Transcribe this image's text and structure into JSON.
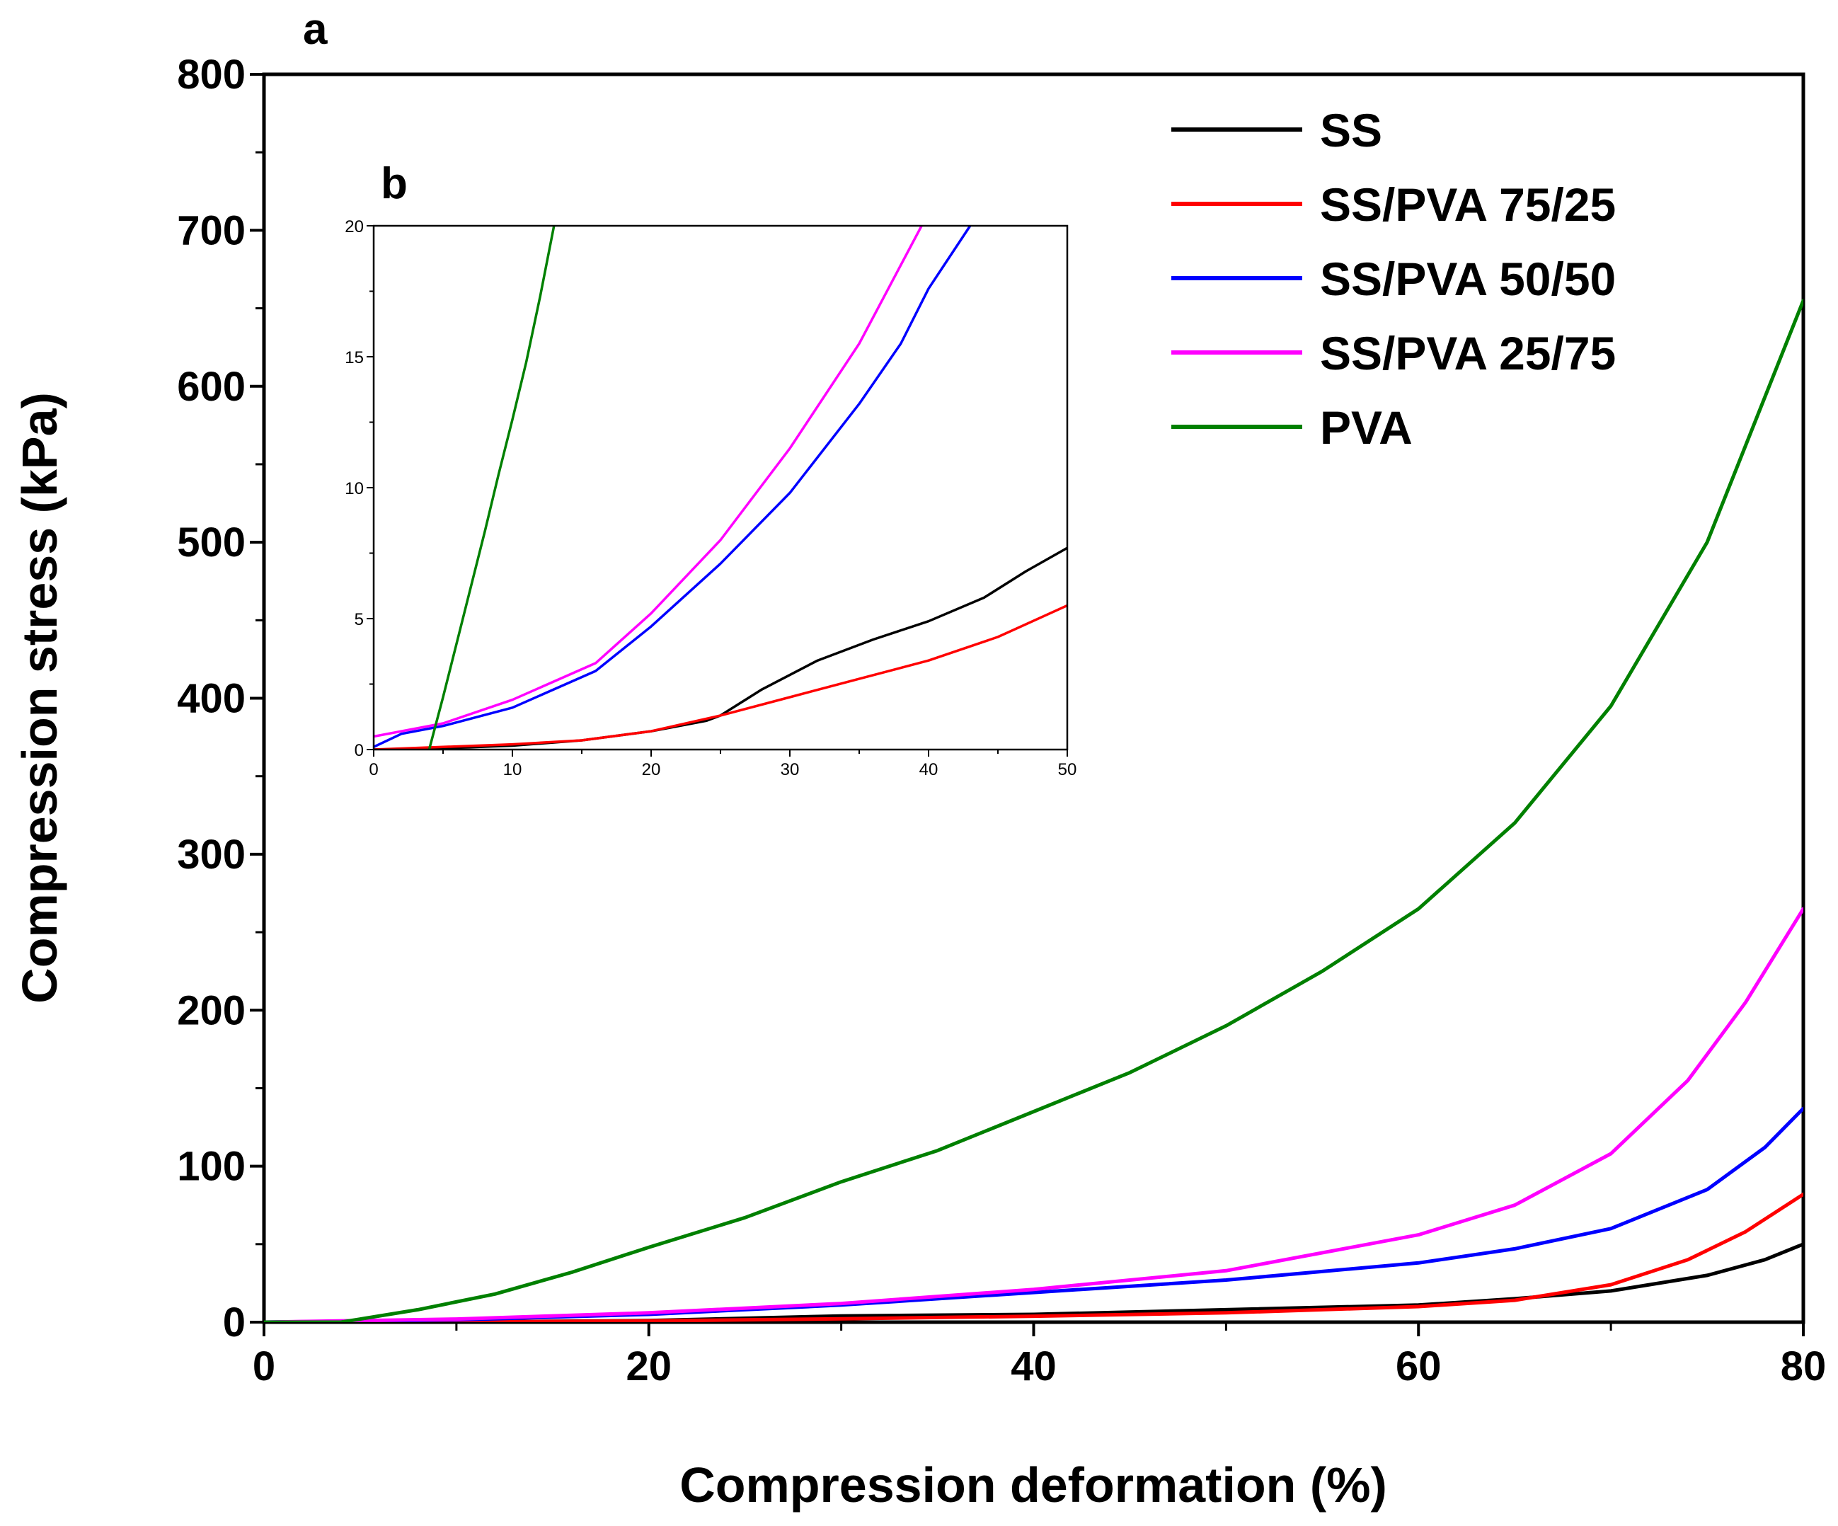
{
  "chart_data": [
    {
      "panel": "a",
      "type": "line",
      "title": "",
      "xlabel": "Compression deformation (%)",
      "ylabel": "Compression stress (kPa)",
      "xlim": [
        0,
        80
      ],
      "ylim": [
        0,
        800
      ],
      "xticks": [
        "0",
        "20",
        "40",
        "60",
        "80"
      ],
      "yticks": [
        "0",
        "100",
        "200",
        "300",
        "400",
        "500",
        "600",
        "700",
        "800"
      ],
      "grid": false,
      "legend_position": "top-right",
      "series": [
        {
          "name": "SS",
          "color": "#000000",
          "x": [
            0,
            10,
            20,
            30,
            40,
            50,
            60,
            65,
            70,
            75,
            78,
            80
          ],
          "y": [
            0,
            0.2,
            1,
            4,
            5,
            8,
            11,
            15,
            20,
            30,
            40,
            50
          ]
        },
        {
          "name": "SS/PVA 75/25",
          "color": "#ff0000",
          "x": [
            0,
            10,
            20,
            30,
            40,
            50,
            60,
            65,
            70,
            74,
            77,
            80
          ],
          "y": [
            0,
            0.2,
            0.8,
            2.2,
            3.8,
            6,
            10,
            14,
            24,
            40,
            58,
            82
          ]
        },
        {
          "name": "SS/PVA 50/50",
          "color": "#0000ff",
          "x": [
            0,
            10,
            20,
            30,
            40,
            50,
            60,
            65,
            70,
            75,
            78,
            80
          ],
          "y": [
            0,
            1.5,
            5,
            11,
            19,
            27,
            38,
            47,
            60,
            85,
            112,
            137
          ]
        },
        {
          "name": "SS/PVA 25/75",
          "color": "#ff00ff",
          "x": [
            0,
            10,
            20,
            30,
            40,
            50,
            60,
            65,
            70,
            74,
            77,
            80
          ],
          "y": [
            0,
            2,
            6,
            12,
            21,
            33,
            56,
            75,
            108,
            155,
            205,
            265
          ]
        },
        {
          "name": "PVA",
          "color": "#008000",
          "x": [
            0,
            4,
            8,
            12,
            16,
            20,
            25,
            30,
            35,
            40,
            45,
            50,
            55,
            60,
            65,
            70,
            75,
            80
          ],
          "y": [
            0,
            0,
            8,
            18,
            32,
            48,
            67,
            90,
            110,
            135,
            160,
            190,
            225,
            265,
            320,
            395,
            500,
            655
          ]
        }
      ]
    },
    {
      "panel": "b",
      "type": "line",
      "title": "",
      "xlabel": "",
      "ylabel": "",
      "xlim": [
        0,
        50
      ],
      "ylim": [
        0,
        20
      ],
      "xticks": [
        "0",
        "10",
        "20",
        "30",
        "40",
        "50"
      ],
      "yticks": [
        "0",
        "5",
        "10",
        "15",
        "20"
      ],
      "grid": false,
      "series": [
        {
          "name": "SS",
          "color": "#000000",
          "x": [
            0,
            5,
            10,
            15,
            20,
            24,
            25,
            28,
            32,
            36,
            40,
            44,
            47,
            50
          ],
          "y": [
            0,
            0.05,
            0.15,
            0.35,
            0.7,
            1.1,
            1.3,
            2.3,
            3.4,
            4.2,
            4.9,
            5.8,
            6.8,
            7.7
          ]
        },
        {
          "name": "SS/PVA 75/25",
          "color": "#ff0000",
          "x": [
            0,
            5,
            10,
            15,
            20,
            25,
            30,
            35,
            40,
            45,
            50
          ],
          "y": [
            0,
            0.1,
            0.2,
            0.35,
            0.7,
            1.3,
            2.0,
            2.7,
            3.4,
            4.3,
            5.5
          ]
        },
        {
          "name": "SS/PVA 50/50",
          "color": "#0000ff",
          "x": [
            0,
            2,
            5,
            10,
            16,
            20,
            25,
            30,
            35,
            38,
            40,
            43
          ],
          "y": [
            0.1,
            0.6,
            0.9,
            1.6,
            3.0,
            4.7,
            7.1,
            9.8,
            13.2,
            15.5,
            17.6,
            20
          ]
        },
        {
          "name": "SS/PVA 25/75",
          "color": "#ff00ff",
          "x": [
            0,
            5,
            10,
            16,
            20,
            25,
            30,
            35,
            39.5
          ],
          "y": [
            0.5,
            1.0,
            1.9,
            3.3,
            5.2,
            8.0,
            11.5,
            15.5,
            20
          ]
        },
        {
          "name": "PVA",
          "color": "#008000",
          "x": [
            4,
            5,
            6,
            7,
            8,
            9,
            10,
            11,
            12,
            13
          ],
          "y": [
            0,
            2.0,
            4.1,
            6.2,
            8.3,
            10.5,
            12.6,
            14.8,
            17.3,
            20
          ]
        }
      ]
    }
  ]
}
